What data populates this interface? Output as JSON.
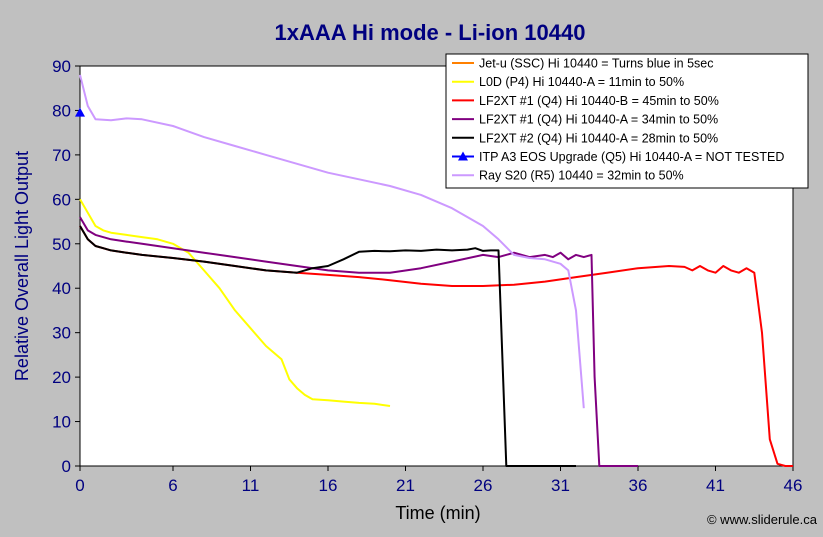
{
  "chart_data": {
    "type": "line",
    "title": "1xAAA Hi mode - Li-ion 10440",
    "xlabel": "Time (min)",
    "ylabel": "Relative Overall Light Output",
    "xlim": [
      0,
      46
    ],
    "ylim": [
      0,
      90
    ],
    "xticks": [
      0,
      6,
      11,
      16,
      21,
      26,
      31,
      36,
      41,
      46
    ],
    "yticks": [
      0,
      10,
      20,
      30,
      40,
      50,
      60,
      70,
      80,
      90
    ],
    "grid": false,
    "legend_position": "top-right",
    "credit": "© www.sliderule.ca",
    "series": [
      {
        "name": "Jet-u (SSC) Hi 10440 = Turns blue in 5sec",
        "color": "#ff8000",
        "marker": "none",
        "x": [],
        "y": []
      },
      {
        "name": "L0D (P4) Hi 10440-A = 11min to 50%",
        "color": "#ffff00",
        "marker": "none",
        "x": [
          0,
          0.5,
          1,
          1.5,
          2,
          3,
          4,
          5,
          6,
          7,
          8,
          9,
          10,
          11,
          12,
          13,
          13.5,
          14,
          14.5,
          15,
          16,
          17,
          18,
          19,
          20
        ],
        "y": [
          60,
          57,
          54,
          53,
          52.5,
          52,
          51.5,
          51,
          50,
          48,
          44,
          40,
          35,
          31,
          27,
          24,
          19.5,
          17.5,
          16,
          15,
          14.8,
          14.5,
          14.2,
          14,
          13.5
        ]
      },
      {
        "name": "LF2XT #1 (Q4) Hi 10440-B = 45min to 50%",
        "color": "#ff0000",
        "marker": "none",
        "x": [
          0,
          0.5,
          1,
          2,
          3,
          4,
          6,
          8,
          10,
          12,
          14,
          16,
          18,
          20,
          22,
          24,
          26,
          28,
          30,
          32,
          34,
          36,
          38,
          39,
          39.5,
          40,
          40.5,
          41,
          41.5,
          42,
          42.5,
          43,
          43.5,
          44,
          44.5,
          45,
          45.5,
          46
        ],
        "y": [
          54,
          51,
          49.5,
          48.5,
          48,
          47.5,
          46.8,
          46,
          45,
          44,
          43.5,
          43,
          42.5,
          41.8,
          41,
          40.5,
          40.5,
          40.8,
          41.5,
          42.5,
          43.5,
          44.5,
          45,
          44.8,
          44,
          45,
          44,
          43.5,
          45,
          44,
          43.5,
          44.5,
          43.5,
          30,
          6,
          0.5,
          0,
          0
        ]
      },
      {
        "name": "LF2XT #1 (Q4) Hi 10440-A = 34min to 50%",
        "color": "#800080",
        "marker": "none",
        "x": [
          0,
          0.5,
          1,
          2,
          3,
          4,
          6,
          8,
          10,
          12,
          14,
          16,
          18,
          20,
          22,
          24,
          26,
          27,
          28,
          29,
          30,
          30.5,
          31,
          31.5,
          32,
          32.5,
          33,
          33.2,
          33.5,
          34,
          35,
          36
        ],
        "y": [
          56,
          53,
          52,
          51,
          50.5,
          50,
          49,
          48,
          47,
          46,
          45,
          44,
          43.5,
          43.5,
          44.5,
          46,
          47.5,
          47,
          48,
          47,
          47.5,
          47,
          48,
          46.5,
          47.5,
          47,
          47.5,
          20,
          0,
          0,
          0,
          0
        ]
      },
      {
        "name": "LF2XT #2 (Q4) Hi 10440-A = 28min to 50%",
        "color": "#000000",
        "marker": "none",
        "x": [
          0,
          0.5,
          1,
          1.5,
          2,
          3,
          4,
          6,
          8,
          10,
          12,
          14,
          15,
          16,
          17,
          18,
          19,
          20,
          21,
          22,
          23,
          24,
          25,
          25.5,
          26,
          26.5,
          27,
          27.5,
          28,
          28.5,
          30,
          32
        ],
        "y": [
          54,
          51,
          49.5,
          49,
          48.5,
          48,
          47.5,
          46.8,
          46,
          45,
          44,
          43.5,
          44.5,
          45,
          46.5,
          48.2,
          48.4,
          48.3,
          48.5,
          48.4,
          48.7,
          48.5,
          48.7,
          49,
          48.4,
          48.5,
          48.5,
          0,
          0,
          0,
          0,
          0
        ]
      },
      {
        "name": "ITP A3 EOS Upgrade (Q5) Hi 10440-A = NOT TESTED",
        "color": "#0000ff",
        "marker": "triangle",
        "x": [
          0
        ],
        "y": [
          79.5
        ]
      },
      {
        "name": "Ray S20 (R5) 10440 = 32min to 50%",
        "color": "#cc99ff",
        "marker": "none",
        "x": [
          0,
          0.5,
          1,
          2,
          3,
          4,
          6,
          8,
          10,
          12,
          14,
          16,
          18,
          20,
          22,
          24,
          26,
          27,
          28,
          29,
          30,
          31,
          31.5,
          32,
          32.5
        ],
        "y": [
          88,
          81,
          78,
          77.8,
          78.2,
          78,
          76.5,
          74,
          72,
          70,
          68,
          66,
          64.5,
          63,
          61,
          58,
          54,
          51,
          47.5,
          46.8,
          46.5,
          45.5,
          44,
          35,
          13
        ]
      }
    ]
  }
}
